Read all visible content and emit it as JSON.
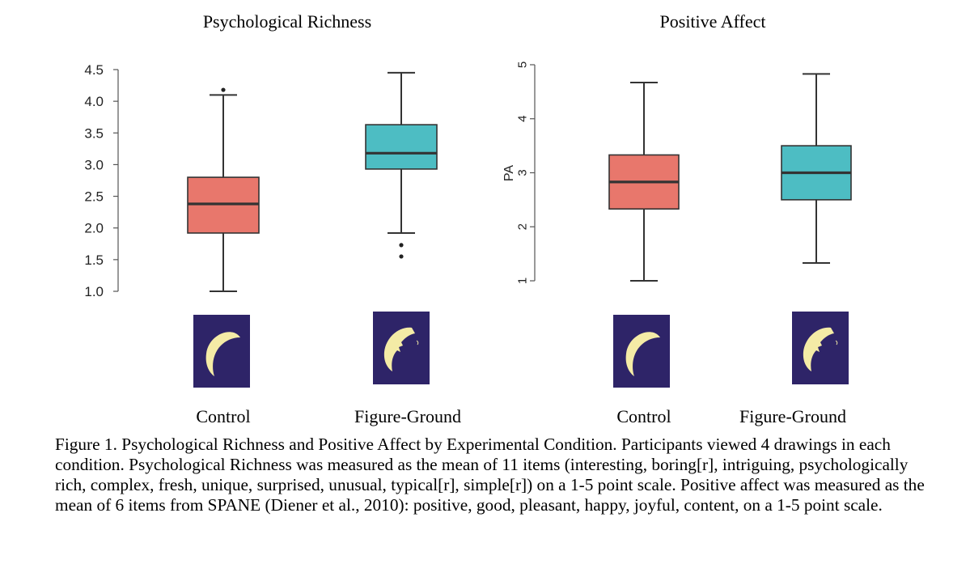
{
  "chart_data": [
    {
      "type": "box",
      "title": "Psychological Richness",
      "ylabel": "",
      "ylim": [
        1.0,
        4.5
      ],
      "yticks": [
        "1.0",
        "1.5",
        "2.0",
        "2.5",
        "3.0",
        "3.5",
        "4.0",
        "4.5"
      ],
      "ytick_values": [
        1.0,
        1.5,
        2.0,
        2.5,
        3.0,
        3.5,
        4.0,
        4.5
      ],
      "categories": [
        "Control",
        "Figure-Ground"
      ],
      "boxes": [
        {
          "category": "Control",
          "color": "#E8776C",
          "min": 1.0,
          "q1": 1.92,
          "median": 2.38,
          "q3": 2.8,
          "max": 4.1,
          "outliers": [
            4.18
          ]
        },
        {
          "category": "Figure-Ground",
          "color": "#4DBDC3",
          "min": 1.92,
          "q1": 2.93,
          "median": 3.18,
          "q3": 3.63,
          "max": 4.45,
          "outliers": [
            1.73,
            1.55
          ]
        }
      ]
    },
    {
      "type": "box",
      "title": "Positive Affect",
      "ylabel": "PA",
      "ylim": [
        1,
        5
      ],
      "yticks": [
        "1",
        "2",
        "3",
        "4",
        "5"
      ],
      "ytick_values": [
        1,
        2,
        3,
        4,
        5
      ],
      "categories": [
        "Control",
        "Figure-Ground"
      ],
      "boxes": [
        {
          "category": "Control",
          "color": "#E8776C",
          "min": 1.0,
          "q1": 2.33,
          "median": 2.83,
          "q3": 3.33,
          "max": 4.67,
          "outliers": []
        },
        {
          "category": "Figure-Ground",
          "color": "#4DBDC3",
          "min": 1.33,
          "q1": 2.5,
          "median": 3.0,
          "q3": 3.5,
          "max": 4.83,
          "outliers": []
        }
      ]
    }
  ],
  "stimulus_icons": [
    "crescent-moon-icon",
    "crescent-moon-face-icon"
  ],
  "stimulus_colors": {
    "background": "#2E2468",
    "moon": "#F4EBA6"
  },
  "caption": "Figure 1. Psychological Richness and Positive Affect by Experimental Condition. Participants viewed 4 drawings in each condition. Psychological Richness was measured as the mean of 11 items (interesting, boring[r], intriguing, psychologically rich, complex, fresh, unique, surprised, unusual, typical[r], simple[r]) on a 1-5 point scale. Positive affect was measured as the mean of 6 items from SPANE (Diener et al., 2010): positive, good, pleasant, happy, joyful, content, on a 1-5 point scale."
}
